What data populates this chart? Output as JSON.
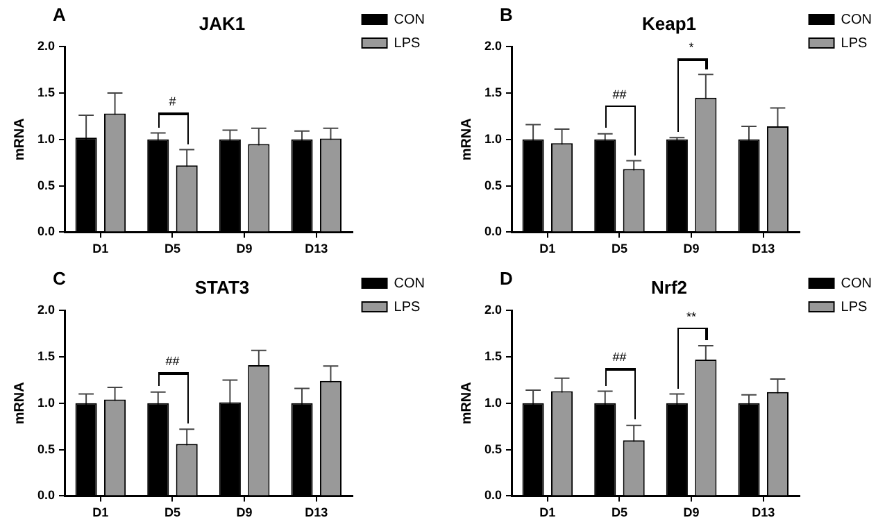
{
  "chart_data": [
    {
      "type": "bar",
      "title": "JAK1",
      "ylabel": "mRNA",
      "categories": [
        "D1",
        "D5",
        "D9",
        "D13"
      ],
      "series": [
        {
          "name": "CON",
          "color": "#000000",
          "values": [
            1.02,
            1.0,
            1.0,
            1.0
          ],
          "errors": [
            0.24,
            0.07,
            0.1,
            0.09
          ]
        },
        {
          "name": "LPS",
          "color": "#999999",
          "values": [
            1.28,
            0.72,
            0.95,
            1.01
          ],
          "errors": [
            0.22,
            0.17,
            0.17,
            0.11
          ]
        }
      ],
      "ylim": [
        0,
        2
      ],
      "yticks": [
        {
          "value": 0,
          "label": "0.0"
        },
        {
          "value": 0.5,
          "label": "0.5"
        },
        {
          "value": 1,
          "label": "1.0"
        },
        {
          "value": 1.5,
          "label": "1.5"
        },
        {
          "value": 2,
          "label": "2.0"
        }
      ],
      "grid": false,
      "legend": "right",
      "annotations": [
        "A",
        "#"
      ]
    },
    {
      "type": "bar",
      "title": "Keap1",
      "ylabel": "mRNA",
      "categories": [
        "D1",
        "D5",
        "D9",
        "D13"
      ],
      "series": [
        {
          "name": "CON",
          "color": "#000000",
          "values": [
            1.0,
            1.0,
            1.0,
            1.0
          ],
          "errors": [
            0.16,
            0.06,
            0.02,
            0.14
          ]
        },
        {
          "name": "LPS",
          "color": "#999999",
          "values": [
            0.96,
            0.68,
            1.45,
            1.14
          ],
          "errors": [
            0.15,
            0.09,
            0.25,
            0.2
          ]
        }
      ],
      "ylim": [
        0,
        2
      ],
      "yticks": [
        {
          "value": 0,
          "label": "0.0"
        },
        {
          "value": 0.5,
          "label": "0.5"
        },
        {
          "value": 1,
          "label": "1.0"
        },
        {
          "value": 1.5,
          "label": "1.5"
        },
        {
          "value": 2,
          "label": "2.0"
        }
      ],
      "grid": false,
      "legend": "right",
      "annotations": [
        "B",
        "##",
        "*"
      ]
    },
    {
      "type": "bar",
      "title": "STAT3",
      "ylabel": "mRNA",
      "categories": [
        "D1",
        "D5",
        "D9",
        "D13"
      ],
      "series": [
        {
          "name": "CON",
          "color": "#000000",
          "values": [
            1.0,
            1.0,
            1.01,
            1.0
          ],
          "errors": [
            0.1,
            0.12,
            0.24,
            0.16
          ]
        },
        {
          "name": "LPS",
          "color": "#999999",
          "values": [
            1.04,
            0.56,
            1.41,
            1.24
          ],
          "errors": [
            0.13,
            0.16,
            0.16,
            0.16
          ]
        }
      ],
      "ylim": [
        0,
        2
      ],
      "yticks": [
        {
          "value": 0,
          "label": "0.0"
        },
        {
          "value": 0.5,
          "label": "0.5"
        },
        {
          "value": 1,
          "label": "1.0"
        },
        {
          "value": 1.5,
          "label": "1.5"
        },
        {
          "value": 2,
          "label": "2.0"
        }
      ],
      "grid": false,
      "legend": "right",
      "annotations": [
        "C",
        "##"
      ]
    },
    {
      "type": "bar",
      "title": "Nrf2",
      "ylabel": "mRNA",
      "categories": [
        "D1",
        "D5",
        "D9",
        "D13"
      ],
      "series": [
        {
          "name": "CON",
          "color": "#000000",
          "values": [
            1.0,
            1.0,
            1.0,
            1.0
          ],
          "errors": [
            0.14,
            0.13,
            0.1,
            0.09
          ]
        },
        {
          "name": "LPS",
          "color": "#999999",
          "values": [
            1.13,
            0.6,
            1.47,
            1.12
          ],
          "errors": [
            0.14,
            0.16,
            0.15,
            0.14
          ]
        }
      ],
      "ylim": [
        0,
        2
      ],
      "yticks": [
        {
          "value": 0,
          "label": "0.0"
        },
        {
          "value": 0.5,
          "label": "0.5"
        },
        {
          "value": 1,
          "label": "1.0"
        },
        {
          "value": 1.5,
          "label": "1.5"
        },
        {
          "value": 2,
          "label": "2.0"
        }
      ],
      "grid": false,
      "legend": "right",
      "annotations": [
        "D",
        "##",
        "**"
      ]
    }
  ]
}
